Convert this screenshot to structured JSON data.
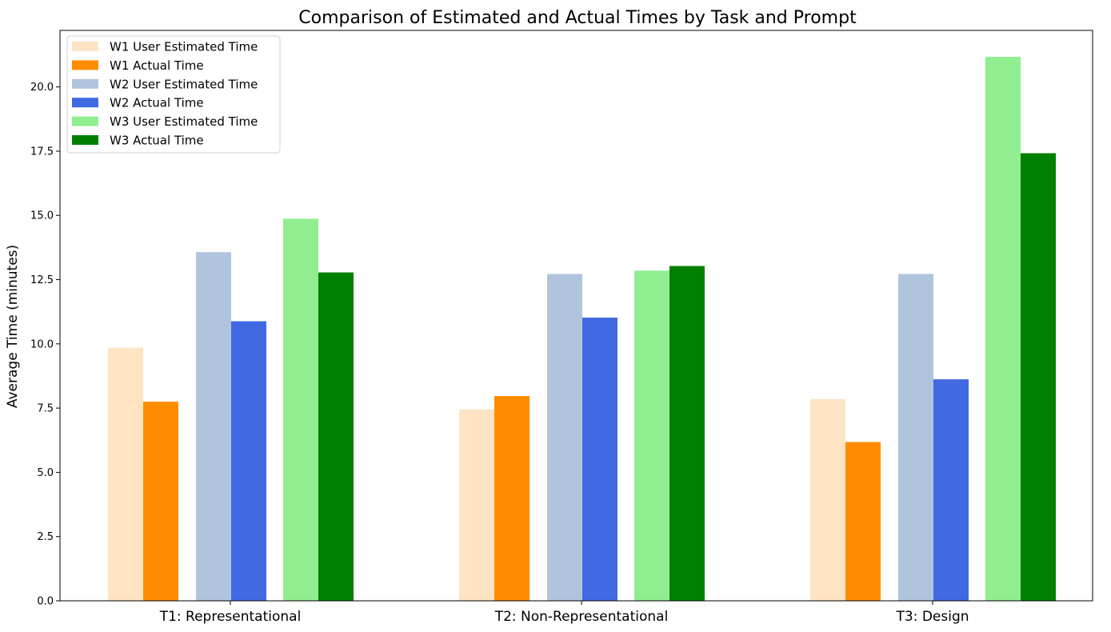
{
  "chart_data": {
    "type": "bar",
    "title": "Comparison of Estimated and Actual Times by Task and Prompt",
    "xlabel": "",
    "ylabel": "Average Time (minutes)",
    "categories": [
      "T1: Representational",
      "T2: Non-Representational",
      "T3: Design"
    ],
    "ylim": [
      0,
      22.2
    ],
    "yticks": [
      "0.0",
      "2.5",
      "5.0",
      "7.5",
      "10.0",
      "12.5",
      "15.0",
      "17.5",
      "20.0"
    ],
    "grid": false,
    "legend_position": "top-left",
    "series": [
      {
        "name": "W1 User Estimated Time",
        "color": "#ffe4c4",
        "values": [
          9.85,
          7.45,
          7.85
        ]
      },
      {
        "name": "W1 Actual Time",
        "color": "#ff8c00",
        "values": [
          7.75,
          7.97,
          6.18
        ]
      },
      {
        "name": "W2 User Estimated Time",
        "color": "#b0c4de",
        "values": [
          13.57,
          12.72,
          12.72
        ]
      },
      {
        "name": "W2 Actual Time",
        "color": "#4169e1",
        "values": [
          10.88,
          11.02,
          8.62
        ]
      },
      {
        "name": "W3 User Estimated Time",
        "color": "#90ee90",
        "values": [
          14.87,
          12.85,
          21.17
        ]
      },
      {
        "name": "W3 Actual Time",
        "color": "#008000",
        "values": [
          12.78,
          13.03,
          17.42
        ]
      }
    ]
  }
}
